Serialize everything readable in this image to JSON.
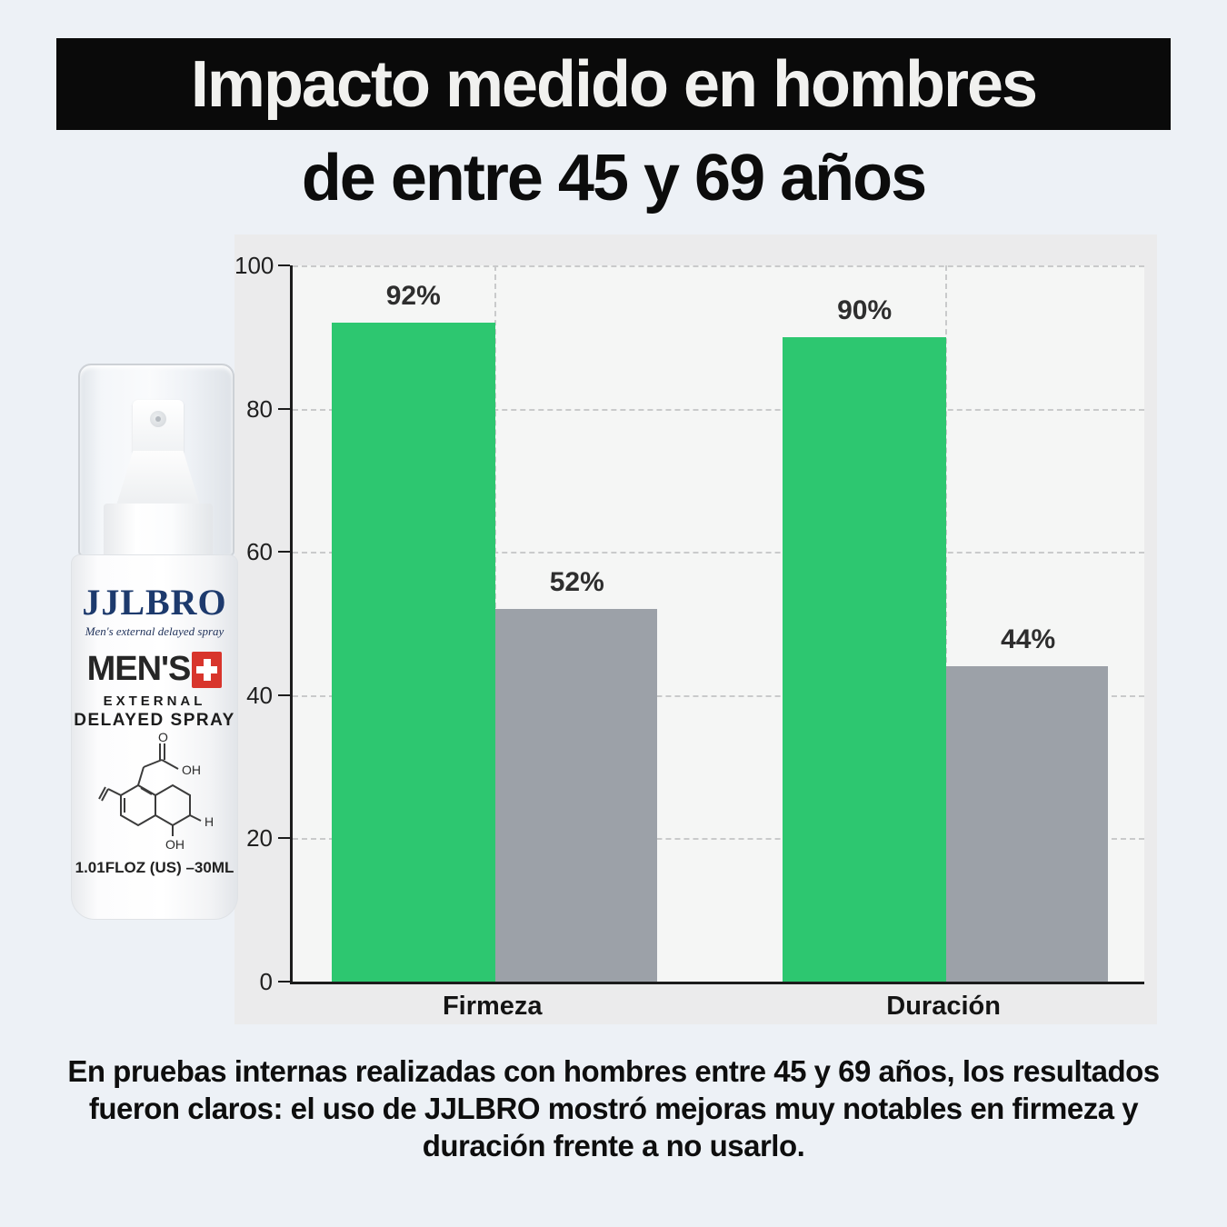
{
  "title": {
    "line1": "Impacto medido en hombres",
    "line2": "de entre 45 y 69 años"
  },
  "product": {
    "brand": "JJLBRO",
    "tagline": "Men's external delayed spray",
    "name": "MEN'S",
    "sub1": "EXTERNAL",
    "sub2": "DELAYED SPRAY",
    "volume": "1.01FLOZ (US) –30ML",
    "molecule_labels": [
      "O",
      "OH",
      "OH",
      "H"
    ]
  },
  "chart_data": {
    "type": "bar",
    "categories": [
      "Firmeza",
      "Duración"
    ],
    "series": [
      {
        "color": "#2dc770",
        "values": [
          92,
          90
        ],
        "value_labels": [
          "92%",
          "90%"
        ]
      },
      {
        "color": "#9ca1a8",
        "values": [
          52,
          44
        ],
        "value_labels": [
          "52%",
          "44%"
        ]
      }
    ],
    "ylabel": "",
    "xlabel": "",
    "ylim": [
      0,
      100
    ],
    "yticks": [
      0,
      20,
      40,
      60,
      80,
      100
    ],
    "grid": "dashed horizontal at yticks, dashed vertical at category centers",
    "legend": "none",
    "plot_background": "#f5f6f5",
    "panel_background": "#ebebec"
  },
  "caption": {
    "lines": [
      "En pruebas internas realizadas con hombres entre 45 y 69 años, los resultados",
      "fueron claros: el uso de JJLBRO mostró mejoras muy notables en firmeza y",
      "duración frente a no usarlo."
    ]
  },
  "colors": {
    "page_background": "#edf1f6",
    "banner_background": "#0a0a0a",
    "banner_text": "#f1f1ef",
    "bar_green": "#2dc770",
    "bar_gray": "#9ca1a8",
    "brand_navy": "#1d3a6d",
    "cross_red": "#d8352c"
  }
}
